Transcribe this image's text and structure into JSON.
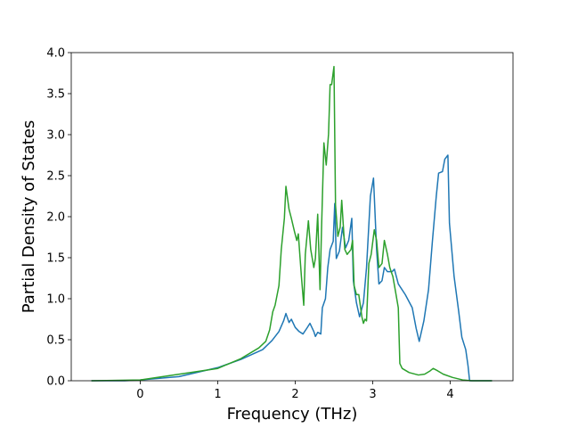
{
  "chart_data": {
    "type": "line",
    "x_label": "Frequency (THz)",
    "y_label": "Partial Density of States",
    "xlim": [
      -0.89,
      4.81
    ],
    "ylim": [
      0,
      4.0
    ],
    "xticks": [
      0,
      1,
      2,
      3,
      4
    ],
    "yticks": [
      {
        "value": 0,
        "label": "0.0"
      },
      0.5,
      {
        "value": 1,
        "label": "1.0"
      },
      1.5,
      {
        "value": 2,
        "label": "2.0"
      },
      2.5,
      {
        "value": 3,
        "label": "3.0"
      },
      3.5,
      {
        "value": 4,
        "label": "4.0"
      }
    ],
    "series": [
      {
        "color": "#1f77b4",
        "x": [
          -0.63,
          -0.2,
          0,
          0.5,
          1.0,
          1.3,
          1.58,
          1.7,
          1.79,
          1.85,
          1.88,
          1.92,
          1.95,
          2.0,
          2.05,
          2.1,
          2.15,
          2.19,
          2.24,
          2.26,
          2.29,
          2.33,
          2.35,
          2.39,
          2.42,
          2.45,
          2.49,
          2.51,
          2.53,
          2.57,
          2.61,
          2.65,
          2.69,
          2.73,
          2.75,
          2.79,
          2.83,
          2.88,
          2.92,
          2.97,
          3.01,
          3.05,
          3.08,
          3.12,
          3.15,
          3.19,
          3.25,
          3.28,
          3.33,
          3.42,
          3.51,
          3.56,
          3.6,
          3.66,
          3.72,
          3.77,
          3.82,
          3.85,
          3.9,
          3.93,
          3.97,
          3.99,
          4.05,
          4.11,
          4.15,
          4.2,
          4.23,
          4.25,
          4.54
        ],
        "values": [
          0,
          0,
          0.01,
          0.05,
          0.16,
          0.26,
          0.38,
          0.49,
          0.6,
          0.73,
          0.82,
          0.71,
          0.75,
          0.65,
          0.6,
          0.57,
          0.64,
          0.7,
          0.6,
          0.54,
          0.59,
          0.57,
          0.89,
          1.0,
          1.38,
          1.6,
          1.7,
          2.16,
          1.49,
          1.58,
          1.87,
          1.62,
          1.71,
          1.98,
          1.22,
          0.95,
          0.78,
          0.95,
          1.38,
          2.25,
          2.47,
          1.6,
          1.18,
          1.22,
          1.38,
          1.33,
          1.33,
          1.36,
          1.18,
          1.05,
          0.89,
          0.64,
          0.48,
          0.73,
          1.11,
          1.7,
          2.25,
          2.53,
          2.55,
          2.7,
          2.75,
          1.92,
          1.27,
          0.84,
          0.53,
          0.38,
          0.18,
          0,
          0
        ]
      },
      {
        "color": "#2ca02c",
        "x": [
          -0.63,
          0,
          1.0,
          1.3,
          1.53,
          1.62,
          1.67,
          1.71,
          1.74,
          1.79,
          1.82,
          1.86,
          1.88,
          1.92,
          1.95,
          1.99,
          2.02,
          2.04,
          2.08,
          2.11,
          2.13,
          2.17,
          2.2,
          2.24,
          2.26,
          2.29,
          2.32,
          2.34,
          2.37,
          2.4,
          2.43,
          2.45,
          2.47,
          2.5,
          2.52,
          2.55,
          2.58,
          2.6,
          2.64,
          2.67,
          2.72,
          2.74,
          2.76,
          2.79,
          2.82,
          2.86,
          2.88,
          2.9,
          2.92,
          2.95,
          2.98,
          3.02,
          3.05,
          3.08,
          3.12,
          3.15,
          3.19,
          3.22,
          3.26,
          3.29,
          3.33,
          3.35,
          3.38,
          3.47,
          3.59,
          3.67,
          3.74,
          3.78,
          3.84,
          3.91,
          4.03,
          4.16,
          4.28,
          4.54
        ],
        "values": [
          0,
          0.01,
          0.15,
          0.27,
          0.4,
          0.48,
          0.62,
          0.84,
          0.92,
          1.16,
          1.6,
          1.98,
          2.37,
          2.09,
          1.98,
          1.82,
          1.71,
          1.79,
          1.27,
          0.92,
          1.54,
          1.95,
          1.6,
          1.38,
          1.49,
          2.03,
          1.11,
          1.87,
          2.9,
          2.63,
          3.01,
          3.61,
          3.61,
          3.83,
          2.14,
          1.76,
          1.87,
          2.2,
          1.6,
          1.54,
          1.6,
          1.71,
          1.16,
          1.05,
          1.05,
          0.78,
          0.7,
          0.75,
          0.73,
          1.43,
          1.54,
          1.84,
          1.71,
          1.38,
          1.43,
          1.71,
          1.54,
          1.38,
          1.27,
          1.11,
          0.89,
          0.21,
          0.15,
          0.1,
          0.07,
          0.08,
          0.12,
          0.15,
          0.12,
          0.08,
          0.04,
          0.01,
          0,
          0
        ]
      }
    ]
  }
}
